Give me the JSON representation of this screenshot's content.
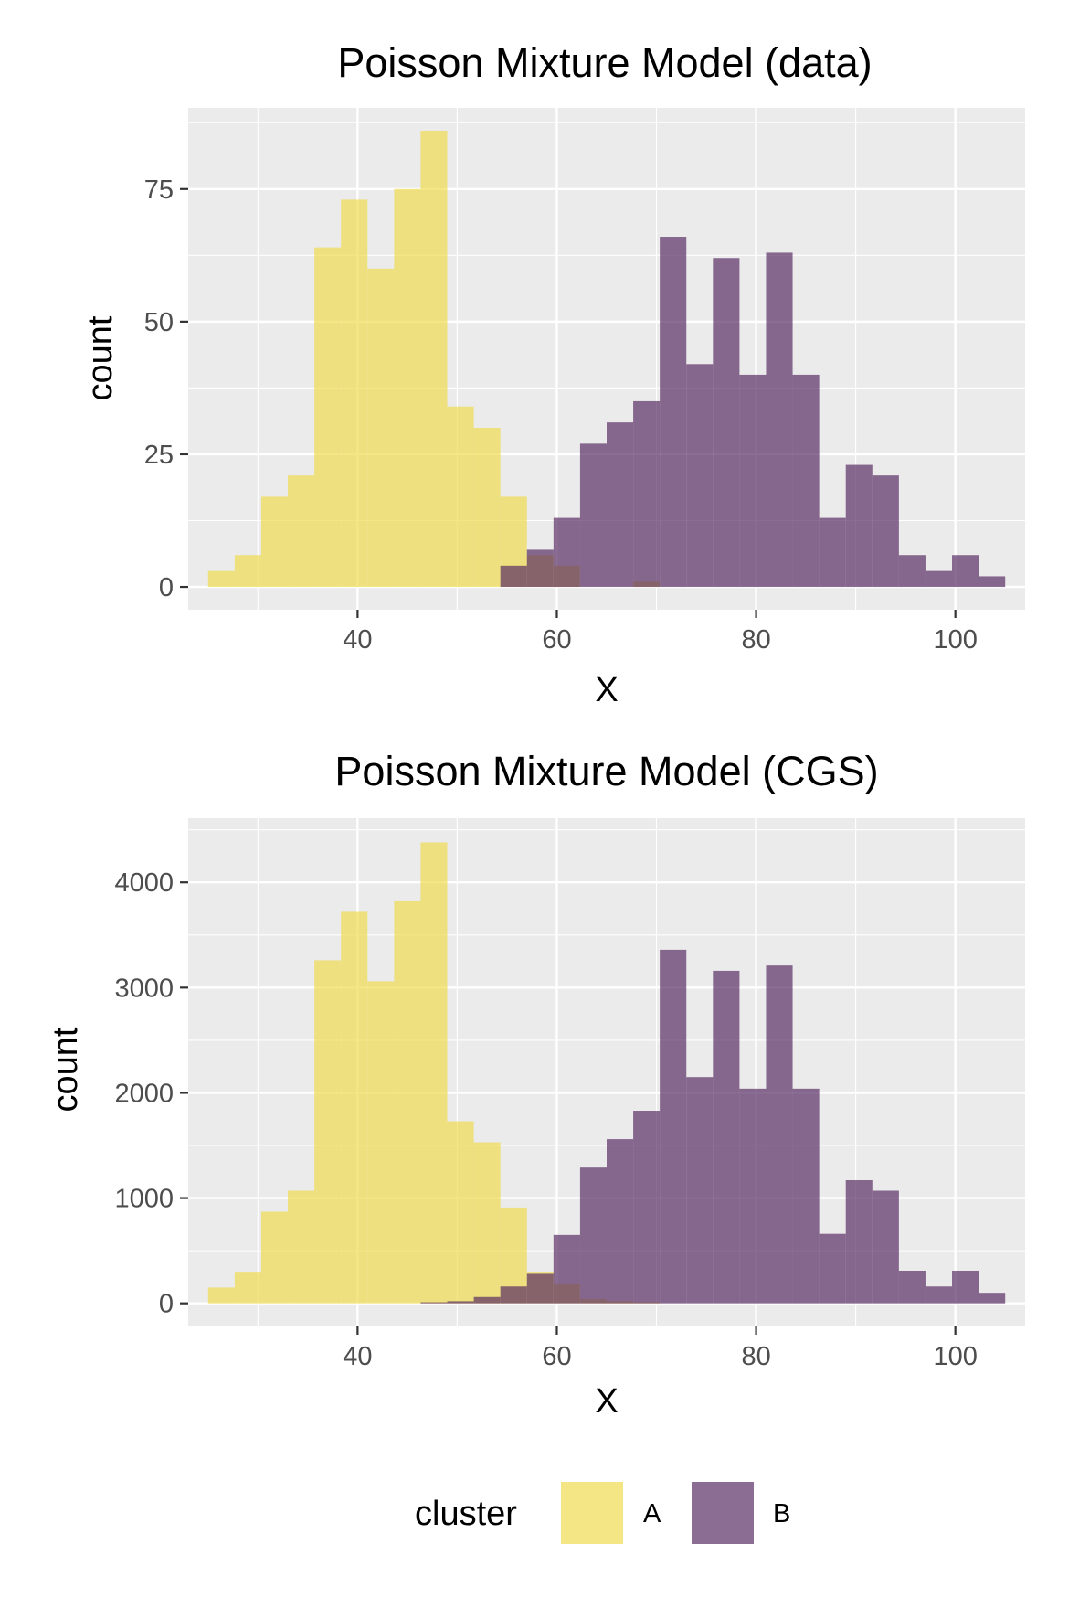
{
  "chart_data": [
    {
      "type": "bar",
      "title": "Poisson Mixture Model (data)",
      "xlabel": "X",
      "ylabel": "count",
      "xlim": [
        23,
        107
      ],
      "ylim": [
        -4.3,
        90.3
      ],
      "xticks": [
        40,
        60,
        80,
        100
      ],
      "xtick_labels": [
        "40",
        "60",
        "80",
        "100"
      ],
      "yticks": [
        0,
        25,
        50,
        75
      ],
      "ytick_labels": [
        "0",
        "25",
        "50",
        "75"
      ],
      "grid": true,
      "bin_width": 2.667,
      "series": [
        {
          "name": "A",
          "bins_start": [
            25,
            27.667,
            30.333,
            33,
            35.667,
            38.333,
            41,
            43.667,
            46.333,
            49,
            51.667,
            54.333,
            57,
            59.667,
            62.333,
            65,
            67.667
          ],
          "values": [
            3,
            6,
            17,
            21,
            64,
            73,
            60,
            75,
            86,
            34,
            30,
            17,
            6,
            4,
            0,
            0,
            1
          ]
        },
        {
          "name": "B",
          "bins_start": [
            54.333,
            57,
            59.667,
            62.333,
            65,
            67.667,
            70.333,
            73,
            75.667,
            78.333,
            81,
            83.667,
            86.333,
            89,
            91.667,
            94.333,
            97,
            99.667,
            102.333
          ],
          "values": [
            4,
            7,
            13,
            27,
            31,
            35,
            66,
            42,
            62,
            40,
            63,
            40,
            13,
            23,
            21,
            6,
            3,
            6,
            2
          ]
        }
      ]
    },
    {
      "type": "bar",
      "title": "Poisson Mixture Model (CGS)",
      "xlabel": "X",
      "ylabel": "count",
      "xlim": [
        23,
        107
      ],
      "ylim": [
        -220,
        4610
      ],
      "xticks": [
        40,
        60,
        80,
        100
      ],
      "xtick_labels": [
        "40",
        "60",
        "80",
        "100"
      ],
      "yticks": [
        0,
        1000,
        2000,
        3000,
        4000
      ],
      "ytick_labels": [
        "0",
        "1000",
        "2000",
        "3000",
        "4000"
      ],
      "grid": true,
      "bin_width": 2.667,
      "series": [
        {
          "name": "A",
          "bins_start": [
            25,
            27.667,
            30.333,
            33,
            35.667,
            38.333,
            41,
            43.667,
            46.333,
            49,
            51.667,
            54.333,
            57,
            59.667,
            62.333,
            65,
            67.667
          ],
          "values": [
            150,
            300,
            870,
            1070,
            3260,
            3720,
            3060,
            3820,
            4380,
            1730,
            1530,
            910,
            300,
            180,
            40,
            20,
            10
          ]
        },
        {
          "name": "B",
          "bins_start": [
            46.333,
            49,
            51.667,
            54.333,
            57,
            59.667,
            62.333,
            65,
            67.667,
            70.333,
            73,
            75.667,
            78.333,
            81,
            83.667,
            86.333,
            89,
            91.667,
            94.333,
            97,
            99.667,
            102.333
          ],
          "values": [
            10,
            20,
            60,
            160,
            280,
            650,
            1290,
            1560,
            1830,
            3360,
            2150,
            3160,
            2040,
            3210,
            2040,
            660,
            1170,
            1070,
            310,
            160,
            310,
            100
          ]
        }
      ]
    }
  ],
  "legend": {
    "title": "cluster",
    "placement": "bottom",
    "items": [
      {
        "label": "A",
        "color": "#f0dc50"
      },
      {
        "label": "B",
        "color": "#5a2e64"
      }
    ]
  },
  "colors": {
    "A": "#f0dc50",
    "B": "#5a2e64",
    "panel_background": "#ebebeb",
    "gridline": "#ffffff"
  }
}
